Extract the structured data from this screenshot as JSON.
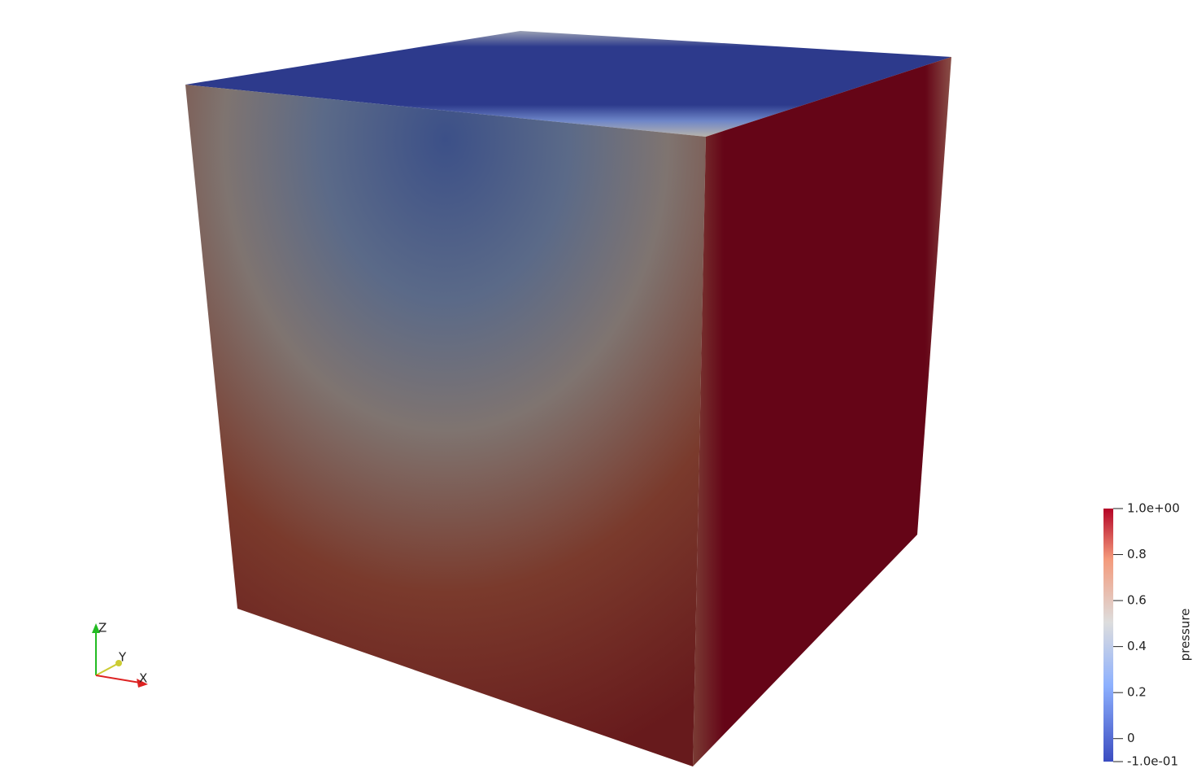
{
  "colorbar": {
    "title": "pressure",
    "range": [
      -0.1,
      1
    ],
    "ticks": [
      {
        "value": 1,
        "label": "1.0e+00"
      },
      0.8,
      0.6,
      0.4,
      0.2,
      0,
      {
        "value": -0.1,
        "label": "-1.0e-01"
      }
    ]
  },
  "axes": {
    "x": "X",
    "y": "Y",
    "z": "Z"
  }
}
